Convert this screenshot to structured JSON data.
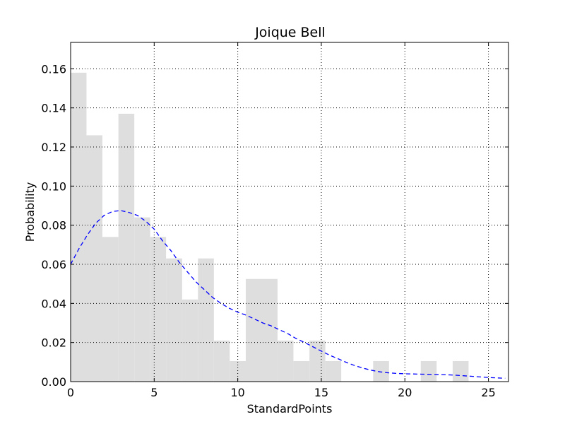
{
  "chart_data": {
    "type": "bar",
    "title": "Joique Bell",
    "xlabel": "StandardPoints",
    "ylabel": "Probability",
    "xlim": [
      0,
      26.2
    ],
    "ylim": [
      0,
      0.1735
    ],
    "x_ticks": [
      0,
      5,
      10,
      15,
      20,
      25
    ],
    "x_tick_labels": [
      "0",
      "5",
      "10",
      "15",
      "20",
      "25"
    ],
    "y_ticks": [
      0.0,
      0.02,
      0.04,
      0.06,
      0.08,
      0.1,
      0.12,
      0.14,
      0.16
    ],
    "y_tick_labels": [
      "0.00",
      "0.02",
      "0.04",
      "0.06",
      "0.08",
      "0.10",
      "0.12",
      "0.14",
      "0.16"
    ],
    "grid": true,
    "histogram": {
      "color": "#dedede",
      "bins": [
        {
          "x0": 0.0,
          "x1": 0.95,
          "y": 0.158
        },
        {
          "x0": 0.95,
          "x1": 1.9,
          "y": 0.126
        },
        {
          "x0": 1.9,
          "x1": 2.86,
          "y": 0.074
        },
        {
          "x0": 2.86,
          "x1": 3.81,
          "y": 0.137
        },
        {
          "x0": 3.81,
          "x1": 4.76,
          "y": 0.084
        },
        {
          "x0": 4.76,
          "x1": 5.71,
          "y": 0.074
        },
        {
          "x0": 5.71,
          "x1": 6.67,
          "y": 0.063
        },
        {
          "x0": 6.67,
          "x1": 7.62,
          "y": 0.042
        },
        {
          "x0": 7.62,
          "x1": 8.57,
          "y": 0.063
        },
        {
          "x0": 8.57,
          "x1": 9.52,
          "y": 0.021
        },
        {
          "x0": 9.52,
          "x1": 10.48,
          "y": 0.0105
        },
        {
          "x0": 10.48,
          "x1": 11.43,
          "y": 0.0525
        },
        {
          "x0": 11.43,
          "x1": 12.38,
          "y": 0.0525
        },
        {
          "x0": 12.38,
          "x1": 13.33,
          "y": 0.021
        },
        {
          "x0": 13.33,
          "x1": 14.29,
          "y": 0.0105
        },
        {
          "x0": 14.29,
          "x1": 15.24,
          "y": 0.021
        },
        {
          "x0": 15.24,
          "x1": 16.19,
          "y": 0.0105
        },
        {
          "x0": 18.1,
          "x1": 19.05,
          "y": 0.0105
        },
        {
          "x0": 20.95,
          "x1": 21.9,
          "y": 0.0105
        },
        {
          "x0": 22.86,
          "x1": 23.81,
          "y": 0.0105
        }
      ]
    },
    "density_curve": {
      "color": "#0000ff",
      "style": "dashed",
      "x": [
        0,
        0.5,
        1,
        1.5,
        2,
        2.5,
        3,
        3.5,
        4,
        4.5,
        5,
        5.5,
        6,
        6.5,
        7,
        7.5,
        8,
        8.5,
        9,
        9.5,
        10,
        10.5,
        11,
        11.5,
        12,
        12.5,
        13,
        13.5,
        14,
        14.5,
        15,
        15.5,
        16,
        16.5,
        17,
        17.5,
        18,
        18.5,
        19,
        19.5,
        20,
        20.5,
        21,
        21.5,
        22,
        22.5,
        23,
        23.5,
        24,
        24.5,
        25,
        25.5,
        26
      ],
      "y": [
        0.06,
        0.068,
        0.075,
        0.081,
        0.085,
        0.087,
        0.0875,
        0.0865,
        0.085,
        0.082,
        0.078,
        0.072,
        0.067,
        0.061,
        0.056,
        0.051,
        0.047,
        0.043,
        0.04,
        0.0375,
        0.0355,
        0.034,
        0.032,
        0.03,
        0.0285,
        0.0265,
        0.0245,
        0.022,
        0.02,
        0.0178,
        0.0156,
        0.0135,
        0.0117,
        0.0098,
        0.0082,
        0.0069,
        0.0058,
        0.005,
        0.0045,
        0.0042,
        0.004,
        0.0039,
        0.0038,
        0.0037,
        0.0036,
        0.0035,
        0.0033,
        0.003,
        0.0027,
        0.0024,
        0.0021,
        0.0019,
        0.0017
      ]
    }
  }
}
